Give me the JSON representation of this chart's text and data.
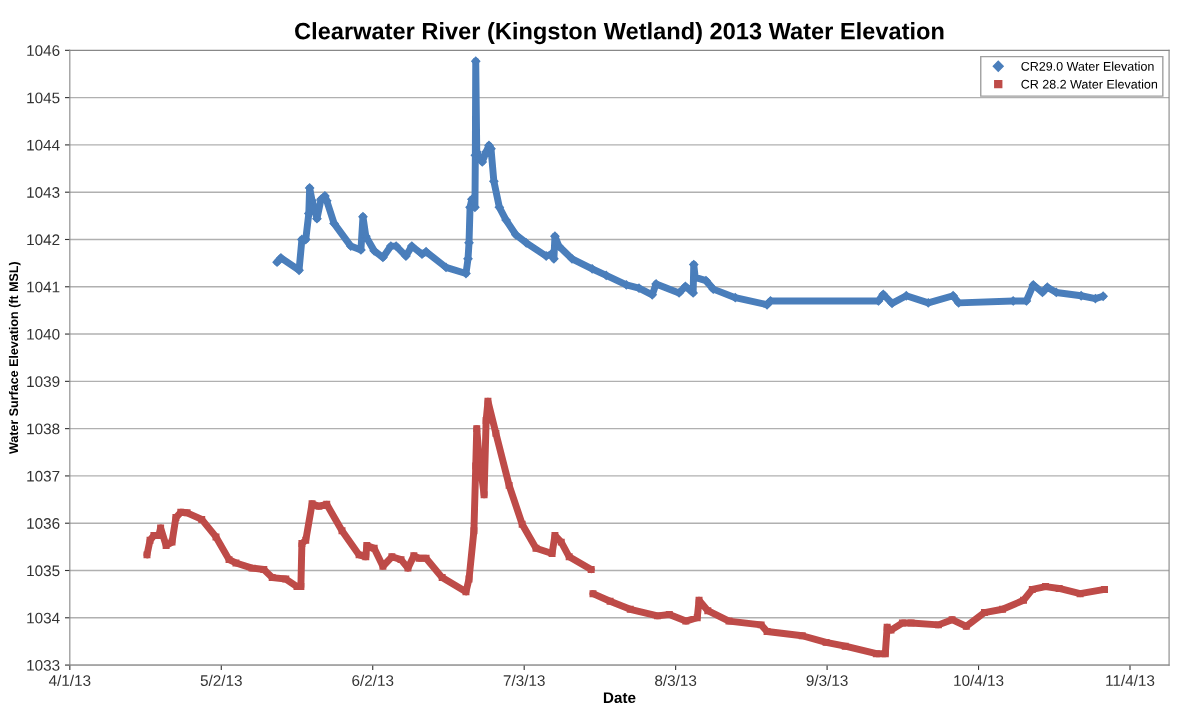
{
  "chart_data": {
    "type": "line",
    "title": "Clearwater River (Kingston Wetland) 2013 Water Elevation",
    "xlabel": "Date",
    "ylabel": "Water Surface Elevation (ft MSL)",
    "xlim": [
      "2013-04-01",
      "2013-11-12"
    ],
    "xticks": [
      {
        "value": "2013-04-01",
        "label": "4/1/13"
      },
      {
        "value": "2013-05-02",
        "label": "5/2/13"
      },
      {
        "value": "2013-06-02",
        "label": "6/2/13"
      },
      {
        "value": "2013-07-03",
        "label": "7/3/13"
      },
      {
        "value": "2013-08-03",
        "label": "8/3/13"
      },
      {
        "value": "2013-09-03",
        "label": "9/3/13"
      },
      {
        "value": "2013-10-04",
        "label": "10/4/13"
      },
      {
        "value": "2013-11-04",
        "label": "11/4/13"
      }
    ],
    "ylim": [
      1033,
      1046
    ],
    "yticks": [
      1033,
      1034,
      1035,
      1036,
      1037,
      1038,
      1039,
      1040,
      1041,
      1042,
      1043,
      1044,
      1045,
      1046
    ],
    "grid": "y",
    "legend": "top right",
    "series": [
      {
        "name": "CR29.0 Water Elevation",
        "color": "#4a7ebb",
        "marker": "diamond",
        "x": [
          "2013-05-13T10:00",
          "2013-05-14T05:00",
          "2013-05-17T22:00",
          "2013-05-18T12:00",
          "2013-05-19T07:00",
          "2013-05-19T22:00",
          "2013-05-20T02:00",
          "2013-05-20T14:00",
          "2013-05-21T14:00",
          "2013-05-22T10:00",
          "2013-05-23T05:00",
          "2013-05-23T14:00",
          "2013-05-25T02:00",
          "2013-05-28T12:00",
          "2013-05-30T14:00",
          "2013-05-31T00:00",
          "2013-05-31T14:00",
          "2013-06-02T07:00",
          "2013-06-04T02:00",
          "2013-06-05T17:00",
          "2013-06-06T19:00",
          "2013-06-08T19:00",
          "2013-06-10T00:00",
          "2013-06-12T02:00",
          "2013-06-12T22:00",
          "2013-06-17T00:00",
          "2013-06-21T02:00",
          "2013-06-21T12:00",
          "2013-06-21T17:00",
          "2013-06-21T22:00",
          "2013-06-22T07:00",
          "2013-06-22T22:00",
          "2013-06-23T00:00",
          "2013-06-23T02:00",
          "2013-06-23T07:00",
          "2013-06-24T10:00",
          "2013-06-25T05:00",
          "2013-06-25T19:00",
          "2013-06-26T05:00",
          "2013-06-26T19:00",
          "2013-06-27T22:00",
          "2013-06-29T07:00",
          "2013-07-01T07:00",
          "2013-07-03T10:00",
          "2013-07-07T12:00",
          "2013-07-08T12:00",
          "2013-07-09T02:00",
          "2013-07-09T07:00",
          "2013-07-10T02:00",
          "2013-07-12T19:00",
          "2013-07-16T22:00",
          "2013-07-19T19:00",
          "2013-07-23T22:00",
          "2013-07-26T12:00",
          "2013-07-29T05:00",
          "2013-07-30T00:00",
          "2013-08-03T17:00",
          "2013-08-05T00:00",
          "2013-08-06T14:00",
          "2013-08-06T17:00",
          "2013-08-07T00:00",
          "2013-08-09T05:00",
          "2013-08-10T17:00",
          "2013-08-15T05:00",
          "2013-08-21T17:00",
          "2013-08-22T10:00",
          "2013-09-13T12:00",
          "2013-09-14T12:00",
          "2013-09-16T07:00",
          "2013-09-19T05:00",
          "2013-09-23T17:00",
          "2013-09-28T19:00",
          "2013-09-29T22:00",
          "2013-10-11T02:00",
          "2013-10-13T19:00",
          "2013-10-15T05:00",
          "2013-10-17T02:00",
          "2013-10-18T02:00",
          "2013-10-19T22:00",
          "2013-10-25T00:00",
          "2013-10-27T22:00",
          "2013-10-29T12:00"
        ],
        "values": [
          1041.52,
          1041.61,
          1041.35,
          1042.0,
          1042.0,
          1042.55,
          1043.09,
          1042.82,
          1042.44,
          1042.85,
          1042.92,
          1042.82,
          1042.34,
          1041.86,
          1041.78,
          1042.48,
          1042.07,
          1041.76,
          1041.62,
          1041.86,
          1041.86,
          1041.65,
          1041.86,
          1041.69,
          1041.74,
          1041.41,
          1041.28,
          1041.59,
          1041.93,
          1042.68,
          1042.85,
          1042.68,
          1043.78,
          1045.77,
          1043.85,
          1043.64,
          1043.85,
          1043.99,
          1043.92,
          1043.23,
          1042.68,
          1042.41,
          1042.1,
          1041.93,
          1041.65,
          1041.69,
          1041.59,
          1042.07,
          1041.86,
          1041.59,
          1041.38,
          1041.24,
          1041.04,
          1040.97,
          1040.83,
          1041.06,
          1040.87,
          1041.01,
          1040.87,
          1041.47,
          1041.2,
          1041.13,
          1040.95,
          1040.77,
          1040.62,
          1040.7,
          1040.7,
          1040.84,
          1040.65,
          1040.81,
          1040.66,
          1040.81,
          1040.66,
          1040.7,
          1040.7,
          1041.04,
          1040.88,
          1040.99,
          1040.88,
          1040.81,
          1040.75,
          1040.8
        ]
      },
      {
        "name": "CR 28.2 Water Elevation",
        "color": "#be4b48",
        "marker": "square",
        "x": [
          "2013-04-16T19:00",
          "2013-04-17T10:00",
          "2013-04-18T05:00",
          "2013-04-19T05:00",
          "2013-04-19T14:00",
          "2013-04-20T17:00",
          "2013-04-21T22:00",
          "2013-04-22T17:00",
          "2013-04-23T17:00",
          "2013-04-25T00:00",
          "2013-04-28T00:00",
          "2013-04-30T22:00",
          "2013-05-03T14:00",
          "2013-05-05T00:00",
          "2013-05-08T07:00",
          "2013-05-10T17:00",
          "2013-05-12T10:00",
          "2013-05-15T05:00",
          "2013-05-17T12:00",
          "2013-05-18T07:00",
          "2013-05-18T12:00",
          "2013-05-19T07:00",
          "2013-05-20T14:00",
          "2013-05-22T00:00",
          "2013-05-23T14:00",
          "2013-05-26T17:00",
          "2013-05-30T05:00",
          "2013-05-31T14:00",
          "2013-05-31T19:00",
          "2013-06-02T07:00",
          "2013-06-04T02:00",
          "2013-06-05T22:00",
          "2013-06-07T19:00",
          "2013-06-09T05:00",
          "2013-06-10T10:00",
          "2013-06-11T12:00",
          "2013-06-12T22:00",
          "2013-06-16T05:00",
          "2013-06-21T02:00",
          "2013-06-21T17:00",
          "2013-06-22T17:00",
          "2013-06-23T02:00",
          "2013-06-23T07:00",
          "2013-06-23T19:00",
          "2013-06-24T05:00",
          "2013-06-24T19:00",
          "2013-06-25T05:00",
          "2013-06-25T14:00",
          "2013-06-27T05:00",
          "2013-06-29T22:00",
          "2013-07-02T14:00",
          "2013-07-05T10:00",
          "2013-07-08T17:00",
          "2013-07-09T07:00",
          "2013-07-10T14:00",
          "2013-07-12T05:00",
          "2013-07-16T17:00",
          "2013-07-16T22:00",
          "2013-07-17T02:00",
          "2013-07-20T14:00",
          "2013-07-24T17:00",
          "2013-07-30T07:00",
          "2013-08-01T17:00",
          "2013-08-05T02:00",
          "2013-08-07T10:00",
          "2013-08-07T19:00",
          "2013-08-09T14:00",
          "2013-08-13T22:00",
          "2013-08-20T12:00",
          "2013-08-21T17:00",
          "2013-08-28T22:00",
          "2013-09-02T19:00",
          "2013-09-06T17:00",
          "2013-09-13T02:00",
          "2013-09-14T22:00",
          "2013-09-15T07:00",
          "2013-09-16T02:00",
          "2013-09-18T10:00",
          "2013-09-20T05:00",
          "2013-09-25T19:00",
          "2013-09-28T14:00",
          "2013-10-01T12:00",
          "2013-10-05T05:00",
          "2013-10-08T22:00",
          "2013-10-13T05:00",
          "2013-10-15T00:00",
          "2013-10-17T17:00",
          "2013-10-20T12:00",
          "2013-10-24T19:00",
          "2013-10-29T19:00"
        ],
        "values": [
          1035.33,
          1035.64,
          1035.74,
          1035.74,
          1035.9,
          1035.53,
          1035.6,
          1036.12,
          1036.23,
          1036.22,
          1036.08,
          1035.71,
          1035.23,
          1035.16,
          1035.05,
          1035.02,
          1034.85,
          1034.82,
          1034.66,
          1034.66,
          1035.57,
          1035.64,
          1036.41,
          1036.36,
          1036.4,
          1035.84,
          1035.33,
          1035.29,
          1035.53,
          1035.47,
          1035.09,
          1035.29,
          1035.23,
          1035.05,
          1035.31,
          1035.26,
          1035.26,
          1034.85,
          1034.55,
          1034.82,
          1035.84,
          1037.21,
          1038.0,
          1037.35,
          1037.08,
          1036.6,
          1038.17,
          1038.58,
          1037.9,
          1036.8,
          1035.98,
          1035.47,
          1035.36,
          1035.74,
          1035.6,
          1035.29,
          1035.02,
          null,
          1034.51,
          1034.35,
          1034.18,
          1034.04,
          1034.07,
          1033.93,
          1034.0,
          1034.37,
          1034.15,
          1033.93,
          1033.85,
          1033.71,
          1033.62,
          1033.48,
          1033.4,
          1033.24,
          1033.24,
          1033.8,
          1033.74,
          1033.89,
          1033.89,
          1033.85,
          1033.96,
          1033.82,
          1034.11,
          1034.18,
          1034.37,
          1034.6,
          1034.66,
          1034.62,
          1034.51,
          1034.6
        ]
      }
    ]
  }
}
